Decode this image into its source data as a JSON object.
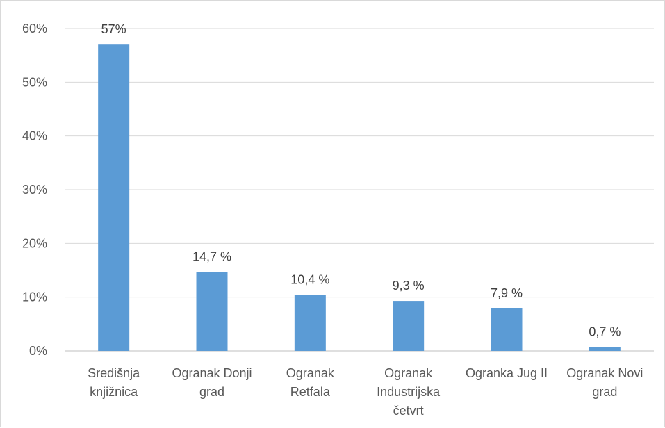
{
  "chart_data": {
    "type": "bar",
    "categories": [
      [
        "Središnja",
        "knjižnica"
      ],
      [
        "Ogranak Donji",
        "grad"
      ],
      [
        "Ogranak",
        "Retfala"
      ],
      [
        "Ogranak",
        "Industrijska",
        "četvrt"
      ],
      [
        "Ogranka Jug II"
      ],
      [
        "Ogranak Novi",
        "grad"
      ]
    ],
    "values": [
      57,
      14.7,
      10.4,
      9.3,
      7.9,
      0.7
    ],
    "data_labels": [
      "57%",
      "14,7 %",
      "10,4 %",
      "9,3 %",
      "7,9 %",
      "0,7 %"
    ],
    "yticks": [
      "0%",
      "10%",
      "20%",
      "30%",
      "40%",
      "50%",
      "60%"
    ],
    "ylim": [
      0,
      60
    ],
    "grid": true,
    "bar_color": "#5b9bd5",
    "title": "",
    "xlabel": "",
    "ylabel": ""
  }
}
